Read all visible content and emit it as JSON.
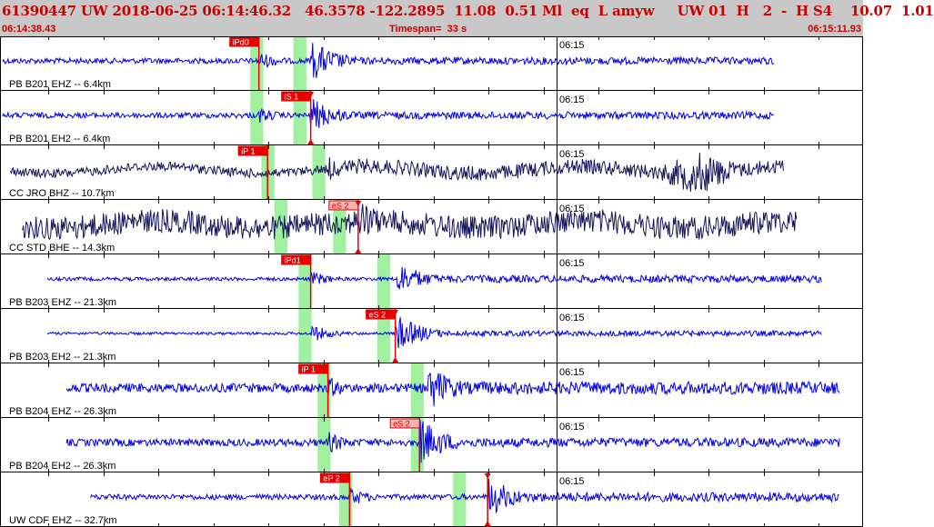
{
  "header": {
    "title": "61390447 UW 2018-06-25 06:14:46.32   46.3578 -122.2895  11.08  0.51 Ml  eq  L amyw     UW 01  H   2  -  H S4    10.07  1.01",
    "start_time": "06:14:38.43",
    "timespan": "Timespan=  33 s",
    "end_time": "06:15:11.93"
  },
  "colors": {
    "header_bg": "#c8c8c8",
    "header_text": "#c80000",
    "trace_blue": "#0000e6",
    "trace_navy": "#14145a",
    "pick_red": "#e60000",
    "pick_pink": "#f5b4b4",
    "window_green": "#a0f0a0",
    "grid": "#000000"
  },
  "minute_mark": "06:15",
  "channels": [
    {
      "label": "PB B201 EHZ -- 6.4km",
      "color": "blue",
      "start": 0.003,
      "end": 0.897,
      "pre_amp": 3,
      "arrivals": [
        0.3,
        0.36
      ],
      "peak_amp": 24,
      "coda_amp": 4,
      "picks": [
        {
          "label": "iPd0",
          "pos": 0.3,
          "style": "red",
          "line": true,
          "tri": false
        }
      ],
      "windows": [
        [
          0.29,
          0.305
        ],
        [
          0.34,
          0.355
        ]
      ]
    },
    {
      "label": "PB B201 EH2 -- 6.4km",
      "color": "blue",
      "start": 0.003,
      "end": 0.897,
      "pre_amp": 3,
      "arrivals": [
        0.3,
        0.36
      ],
      "peak_amp": 20,
      "coda_amp": 4,
      "picks": [
        {
          "label": "iS 1",
          "pos": 0.36,
          "style": "red",
          "line": true,
          "tri": true
        }
      ],
      "windows": [
        [
          0.29,
          0.305
        ],
        [
          0.34,
          0.355
        ]
      ]
    },
    {
      "label": "CC JRO BHZ -- 10.7km",
      "color": "navy",
      "start": 0.012,
      "end": 0.908,
      "pre_amp": 5,
      "arrivals": [
        0.31,
        0.38
      ],
      "peak_amp": 14,
      "coda_amp": 8,
      "burst": [
        0.74,
        0.88,
        24
      ],
      "picks": [
        {
          "label": "iP 1",
          "pos": 0.31,
          "style": "red",
          "line": true,
          "tri": false
        }
      ],
      "windows": [
        [
          0.303,
          0.318
        ],
        [
          0.362,
          0.377
        ]
      ]
    },
    {
      "label": "CC STD BHE -- 14.3km",
      "color": "navy",
      "start": 0.026,
      "end": 0.923,
      "pre_amp": 13,
      "arrivals": [
        0.33,
        0.415
      ],
      "peak_amp": 26,
      "coda_amp": 13,
      "picks": [
        {
          "label": "eS 2",
          "pos": 0.415,
          "style": "pink",
          "line": true,
          "tri": true
        }
      ],
      "windows": [
        [
          0.318,
          0.333
        ],
        [
          0.386,
          0.401
        ]
      ]
    },
    {
      "label": "PB B203 EHZ -- 21.3km",
      "color": "blue",
      "start": 0.055,
      "end": 0.952,
      "pre_amp": 2,
      "arrivals": [
        0.36,
        0.46
      ],
      "peak_amp": 20,
      "coda_amp": 4,
      "picks": [
        {
          "label": "iPd1",
          "pos": 0.36,
          "style": "red",
          "line": true,
          "tri": false
        }
      ],
      "windows": [
        [
          0.346,
          0.361
        ],
        [
          0.437,
          0.452
        ]
      ]
    },
    {
      "label": "PB B203 EH2 -- 21.3km",
      "color": "blue",
      "start": 0.055,
      "end": 0.952,
      "pre_amp": 1.5,
      "arrivals": [
        0.36,
        0.458
      ],
      "peak_amp": 22,
      "coda_amp": 3,
      "picks": [
        {
          "label": "eS 2",
          "pos": 0.458,
          "style": "red",
          "line": true,
          "tri": true
        }
      ],
      "windows": [
        [
          0.346,
          0.361
        ],
        [
          0.437,
          0.452
        ]
      ]
    },
    {
      "label": "PB B204 EHZ -- 26.3km",
      "color": "blue",
      "start": 0.077,
      "end": 0.973,
      "pre_amp": 5,
      "arrivals": [
        0.38,
        0.495
      ],
      "peak_amp": 28,
      "coda_amp": 7,
      "picks": [
        {
          "label": "iP 1",
          "pos": 0.38,
          "style": "red",
          "line": true,
          "tri": false
        }
      ],
      "windows": [
        [
          0.368,
          0.383
        ],
        [
          0.476,
          0.491
        ]
      ]
    },
    {
      "label": "PB B204 EH2 -- 26.3km",
      "color": "blue",
      "start": 0.077,
      "end": 0.973,
      "pre_amp": 4,
      "arrivals": [
        0.38,
        0.486
      ],
      "peak_amp": 28,
      "coda_amp": 5,
      "picks": [
        {
          "label": "eS 2",
          "pos": 0.486,
          "style": "pink",
          "line": true,
          "tri": false
        }
      ],
      "windows": [
        [
          0.368,
          0.383
        ],
        [
          0.476,
          0.491
        ]
      ]
    },
    {
      "label": "UW CDF EHZ -- 32.7km",
      "color": "blue",
      "start": 0.105,
      "end": 0.973,
      "pre_amp": 3,
      "arrivals": [
        0.405,
        0.565
      ],
      "peak_amp": 24,
      "coda_amp": 5,
      "picks": [
        {
          "label": "eP 2",
          "pos": 0.405,
          "style": "red",
          "line": true,
          "tri": false
        },
        {
          "label": "",
          "pos": 0.565,
          "style": "red",
          "line": true,
          "tri": true
        }
      ],
      "windows": [
        [
          0.393,
          0.408
        ],
        [
          0.525,
          0.54
        ]
      ]
    }
  ]
}
